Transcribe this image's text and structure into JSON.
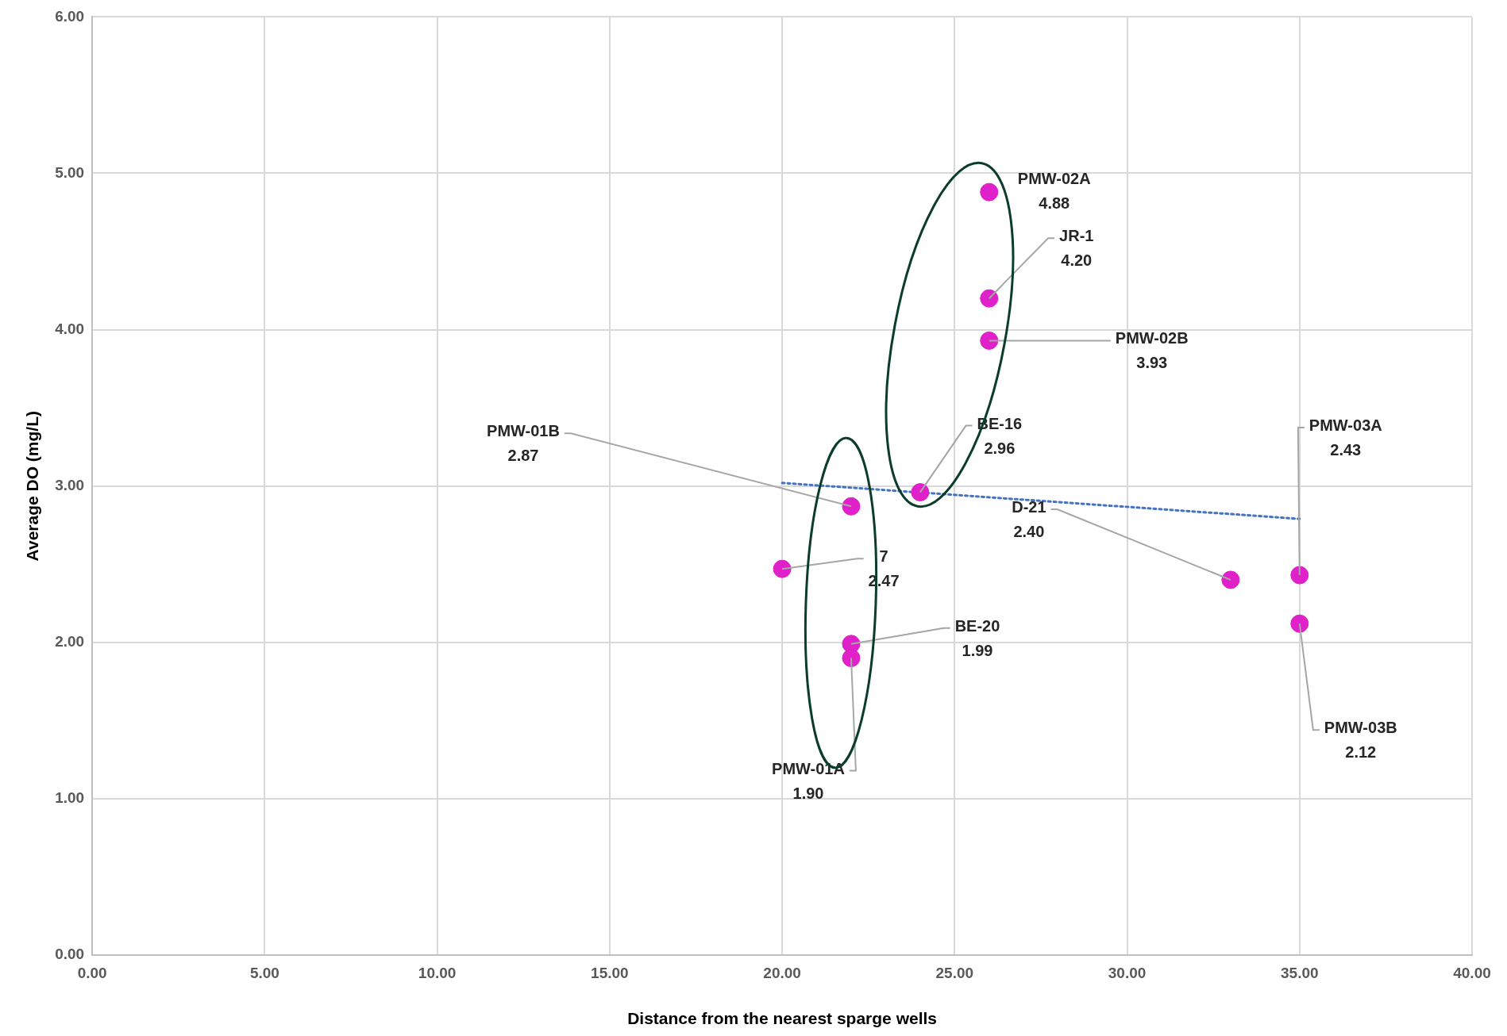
{
  "chart_data": {
    "type": "scatter",
    "xlabel": "Distance from the nearest sparge wells",
    "ylabel": "Average DO (mg/L)",
    "xlim": [
      0,
      40
    ],
    "xticks": [
      {
        "value": 0,
        "label": "0.00"
      },
      {
        "value": 5,
        "label": "5.00"
      },
      {
        "value": 10,
        "label": "10.00"
      },
      {
        "value": 15,
        "label": "15.00"
      },
      {
        "value": 20,
        "label": "20.00"
      },
      {
        "value": 25,
        "label": "25.00"
      },
      {
        "value": 30,
        "label": "30.00"
      },
      {
        "value": 35,
        "label": "35.00"
      },
      {
        "value": 40,
        "label": "40.00"
      }
    ],
    "ylim": [
      0,
      6
    ],
    "yticks": [
      {
        "value": 0,
        "label": "0.00"
      },
      {
        "value": 1,
        "label": "1.00"
      },
      {
        "value": 2,
        "label": "2.00"
      },
      {
        "value": 3,
        "label": "3.00"
      },
      {
        "value": 4,
        "label": "4.00"
      },
      {
        "value": 5,
        "label": "5.00"
      },
      {
        "value": 6,
        "label": "6.00"
      }
    ],
    "grid": true,
    "legend": false,
    "marker": "circle",
    "series": [
      {
        "type": "scatter",
        "color": "#e020c8",
        "x": [
          26,
          26,
          26,
          24,
          22,
          20,
          22,
          22,
          33,
          35,
          35
        ],
        "values": [
          4.88,
          4.2,
          3.93,
          2.96,
          2.87,
          2.47,
          1.99,
          1.9,
          2.4,
          2.43,
          2.12
        ],
        "value_labels": [
          "PMW-02A\n4.88",
          "JR-1\n4.20",
          "PMW-02B\n3.93",
          "BE-16\n2.96",
          "PMW-01B\n2.87",
          "7\n2.47",
          "BE-20\n1.99",
          "PMW-01A\n1.90",
          "D-21\n2.40",
          "PMW-03A\n2.43",
          "PMW-03B\n2.12"
        ]
      },
      {
        "type": "line",
        "color": "#4472c4",
        "line_style": "dotted",
        "marker": "none",
        "x": [
          20,
          35
        ],
        "values": [
          3.02,
          2.79
        ]
      }
    ]
  }
}
